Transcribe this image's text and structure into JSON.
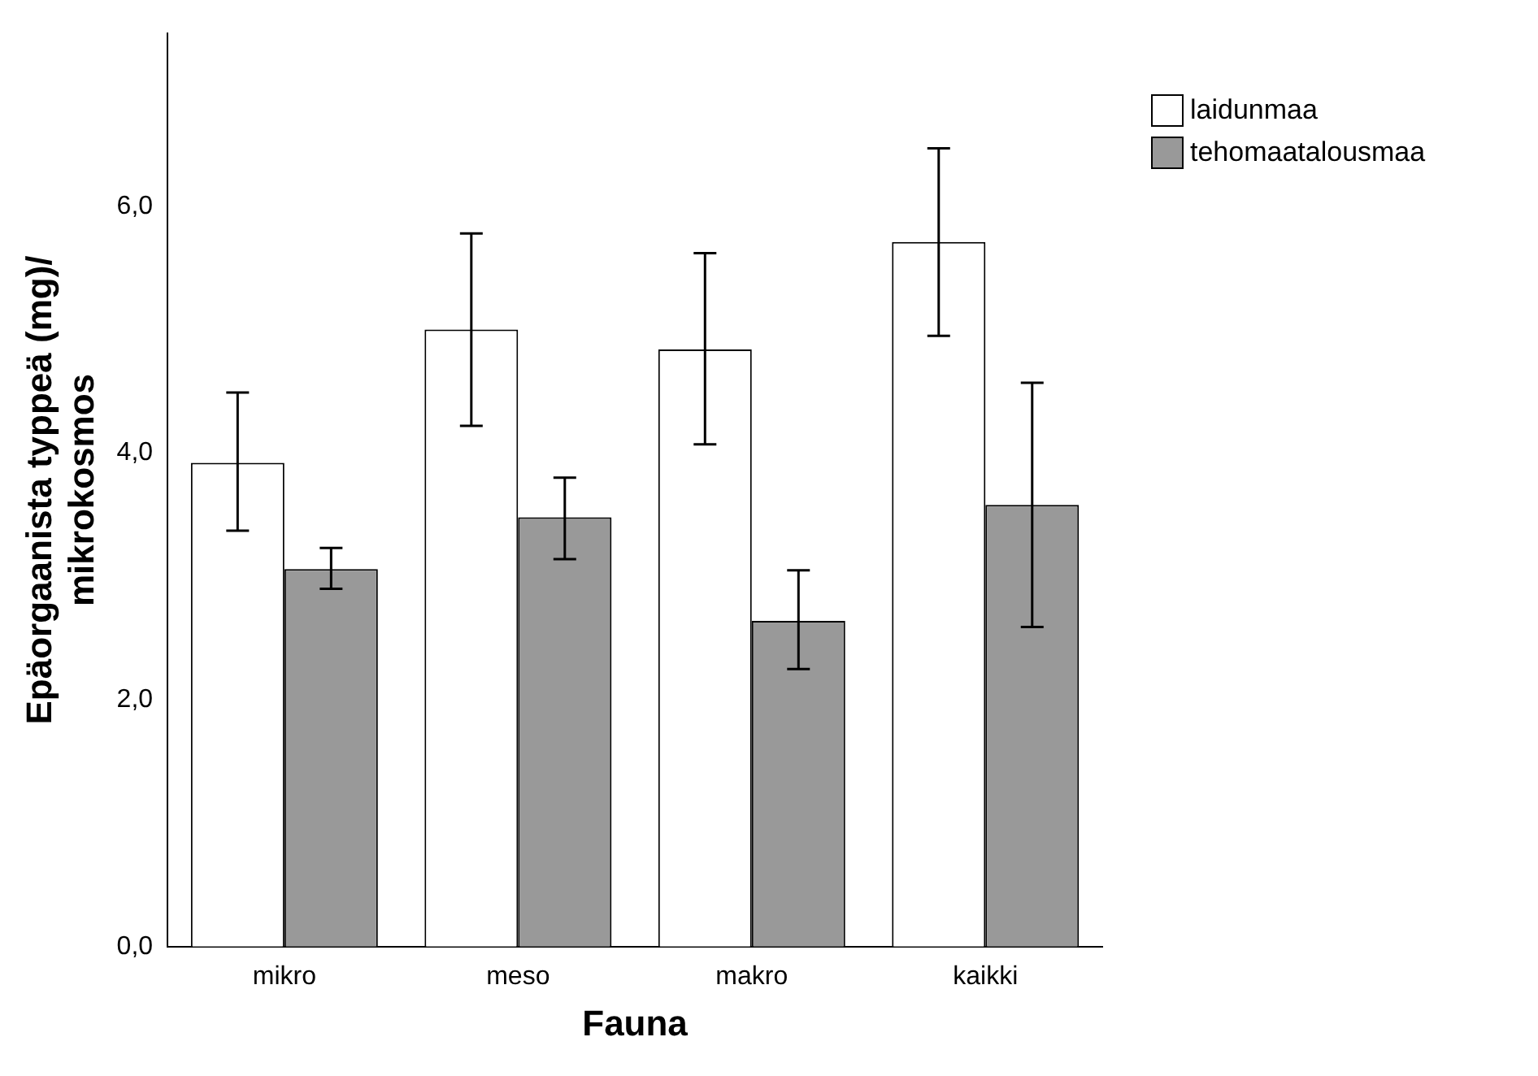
{
  "chart_data": {
    "type": "bar",
    "xlabel": "Fauna",
    "ylabel": "Epäorgaanista typpeä (mg)/\nmikrokosmos",
    "categories": [
      "mikro",
      "meso",
      "makro",
      "kaikki"
    ],
    "series": [
      {
        "name": "laidunmaa",
        "color": "#ffffff",
        "values": [
          3.92,
          5.0,
          4.84,
          5.71
        ],
        "errors": [
          [
            3.37,
            4.49
          ],
          [
            4.22,
            5.78
          ],
          [
            4.07,
            5.62
          ],
          [
            4.95,
            6.47
          ]
        ]
      },
      {
        "name": "tehomaatalousmaa",
        "color": "#999999",
        "values": [
          3.06,
          3.48,
          2.64,
          3.58
        ],
        "errors": [
          [
            2.9,
            3.23
          ],
          [
            3.14,
            3.8
          ],
          [
            2.25,
            3.05
          ],
          [
            2.59,
            4.57
          ]
        ]
      }
    ],
    "ylim": [
      0,
      7.4
    ],
    "yticks": [
      {
        "value": 0,
        "label": "0,0"
      },
      {
        "value": 2,
        "label": "2,0"
      },
      {
        "value": 4,
        "label": "4,0"
      },
      {
        "value": 6,
        "label": "6,0"
      }
    ],
    "grid": false,
    "legend": "top right"
  }
}
